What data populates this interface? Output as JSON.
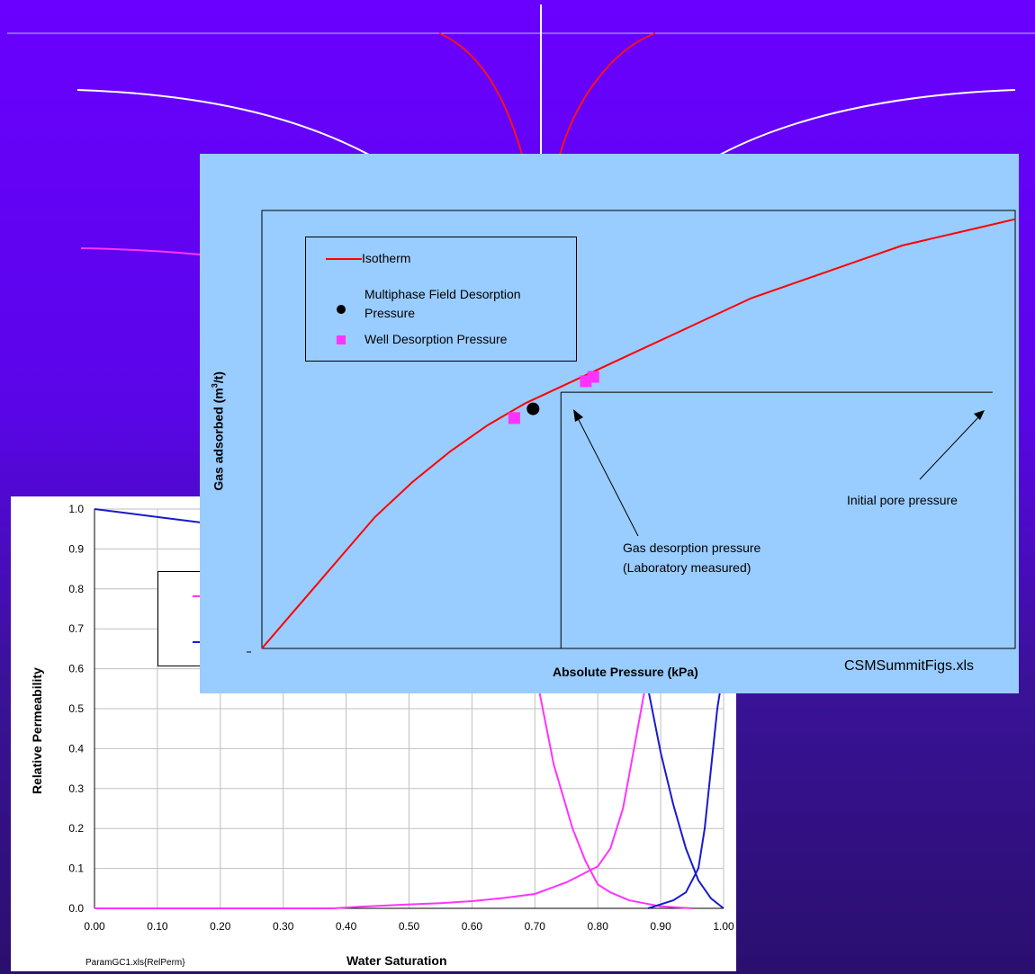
{
  "colors": {
    "background_top": "#6a00ff",
    "background_bottom": "#2a0f6e",
    "isotherm_panel": "#99ccff",
    "isotherm_curve": "#ff0000",
    "well_points": "#ff33ff",
    "field_point": "#000000",
    "relperm_gas": "#ff33ff",
    "relperm_water": "#1a1acc"
  },
  "chart_data": [
    {
      "type": "line",
      "title": "",
      "xlabel": "Absolute Pressure (kPa)",
      "ylabel_main": "Gas adsorbed (m",
      "ylabel_sup": "3",
      "ylabel_end": "/t)",
      "source_note": "CSMSummitFigs.xls",
      "xlim": [
        0,
        1
      ],
      "ylim": [
        0,
        1
      ],
      "grid": false,
      "legend_position": "top-left",
      "series": [
        {
          "name": "Isotherm",
          "type": "line",
          "color": "#ff0000",
          "x": [
            0.0,
            0.05,
            0.1,
            0.15,
            0.2,
            0.25,
            0.3,
            0.35,
            0.4,
            0.45,
            0.5,
            0.55,
            0.6,
            0.65,
            0.7,
            0.75,
            0.8,
            0.85,
            0.9,
            0.95,
            1.0
          ],
          "y": [
            0.0,
            0.1,
            0.2,
            0.3,
            0.38,
            0.45,
            0.51,
            0.56,
            0.6,
            0.64,
            0.68,
            0.72,
            0.76,
            0.8,
            0.83,
            0.86,
            0.89,
            0.92,
            0.94,
            0.96,
            0.98
          ]
        },
        {
          "name": "Multiphase Field Desorption Pressure",
          "type": "scatter",
          "marker": "circle",
          "color": "#000000",
          "x": [
            0.36
          ],
          "y": [
            0.547
          ]
        },
        {
          "name": "Well Desorption Pressure",
          "type": "scatter",
          "marker": "square",
          "color": "#ff33ff",
          "x": [
            0.335,
            0.43,
            0.44
          ],
          "y": [
            0.526,
            0.61,
            0.62
          ]
        }
      ],
      "reference_lines": {
        "desorption_x": 0.397,
        "level_y": 0.585,
        "level_x_end": 0.97
      },
      "annotations": [
        {
          "line1": "Gas desorption pressure",
          "line2": "(Laboratory measured)"
        },
        {
          "line1": "Initial pore pressure",
          "line2": ""
        }
      ],
      "legend_entries": [
        {
          "label": "Isotherm"
        },
        {
          "label_line1": "Multiphase Field Desorption",
          "label_line2": "Pressure"
        },
        {
          "label": "Well Desorption Pressure"
        }
      ],
      "y_origin_tick": "-"
    },
    {
      "type": "line",
      "title": "",
      "xlabel": "Water Saturation",
      "ylabel": "Relative Permeability",
      "source_note": "ParamGC1.xls{RelPerm}",
      "xlim": [
        0,
        1
      ],
      "ylim": [
        0,
        1
      ],
      "grid": true,
      "x_ticks": [
        "0.00",
        "0.10",
        "0.20",
        "0.30",
        "0.40",
        "0.50",
        "0.60",
        "0.70",
        "0.80",
        "0.90",
        "1.00"
      ],
      "y_ticks": [
        "0.0",
        "0.1",
        "0.2",
        "0.3",
        "0.4",
        "0.5",
        "0.6",
        "0.7",
        "0.8",
        "0.9",
        "1.0"
      ],
      "series": [
        {
          "color": "#ff33ff",
          "x": [
            0.0,
            0.1,
            0.2,
            0.3,
            0.38,
            0.42,
            0.5,
            0.55,
            0.6,
            0.65,
            0.7,
            0.75,
            0.8,
            0.82,
            0.84,
            0.86,
            0.875
          ],
          "y": [
            0.0,
            0.0,
            0.0,
            0.0,
            0.0,
            0.004,
            0.01,
            0.013,
            0.018,
            0.026,
            0.036,
            0.065,
            0.105,
            0.15,
            0.25,
            0.42,
            0.55
          ]
        },
        {
          "color": "#ff33ff",
          "x": [
            0.7,
            0.73,
            0.76,
            0.78,
            0.8,
            0.82,
            0.85,
            0.9,
            0.95
          ],
          "y": [
            0.6,
            0.36,
            0.2,
            0.12,
            0.06,
            0.04,
            0.02,
            0.005,
            0.0
          ]
        },
        {
          "color": "#1a1acc",
          "x": [
            0.0,
            0.05,
            0.1,
            0.15,
            0.2
          ],
          "y": [
            1.0,
            0.99,
            0.98,
            0.97,
            0.96
          ]
        },
        {
          "color": "#1a1acc",
          "x": [
            0.88,
            0.9,
            0.92,
            0.94,
            0.96,
            0.98,
            1.0
          ],
          "y": [
            0.55,
            0.39,
            0.26,
            0.15,
            0.07,
            0.025,
            0.0
          ]
        },
        {
          "color": "#1a1acc",
          "x": [
            0.88,
            0.9,
            0.92,
            0.94,
            0.96,
            0.97,
            0.98,
            0.99,
            1.0
          ],
          "y": [
            0.0,
            0.01,
            0.02,
            0.04,
            0.1,
            0.2,
            0.35,
            0.5,
            0.6
          ]
        }
      ]
    }
  ]
}
